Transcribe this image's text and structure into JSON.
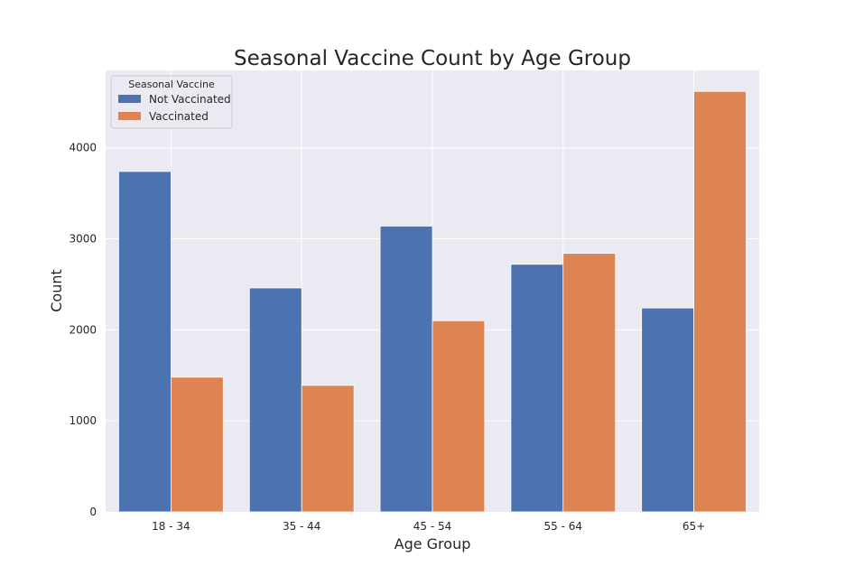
{
  "chart_data": {
    "type": "bar",
    "title": "Seasonal Vaccine Count by Age Group",
    "xlabel": "Age Group",
    "ylabel": "Count",
    "categories": [
      "18 - 34",
      "35 - 44",
      "45 - 54",
      "55 - 64",
      "65+"
    ],
    "series": [
      {
        "name": "Not Vaccinated",
        "color": "#4c72b0",
        "values": [
          3740,
          2460,
          3140,
          2720,
          2240
        ]
      },
      {
        "name": "Vaccinated",
        "color": "#dd8452",
        "values": [
          1480,
          1390,
          2100,
          2840,
          4620
        ]
      }
    ],
    "ylim": [
      0,
      4850
    ],
    "yticks": [
      0,
      1000,
      2000,
      3000,
      4000
    ],
    "legend": {
      "title": "Seasonal Vaccine",
      "position": "top-left"
    },
    "grid": true,
    "background": "#eaeaf2"
  }
}
